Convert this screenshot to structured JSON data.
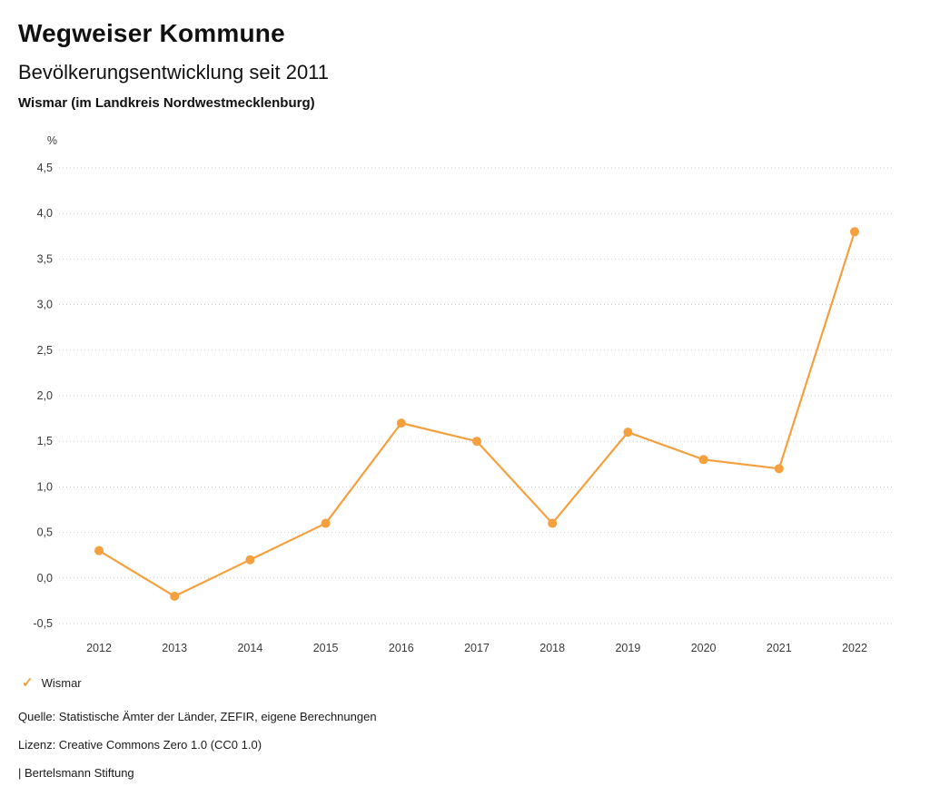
{
  "header": {
    "brand": "Wegweiser Kommune",
    "title": "Bevölkerungsentwicklung seit 2011",
    "subtitle": "Wismar (im Landkreis Nordwestmecklenburg)"
  },
  "chart_data": {
    "type": "line",
    "title": "Bevölkerungsentwicklung seit 2011",
    "unit": "%",
    "categories": [
      "2012",
      "2013",
      "2014",
      "2015",
      "2016",
      "2017",
      "2018",
      "2019",
      "2020",
      "2021",
      "2022"
    ],
    "series": [
      {
        "name": "Wismar",
        "color": "#F5A03E",
        "values": [
          0.3,
          -0.2,
          0.2,
          0.6,
          1.7,
          1.5,
          0.6,
          1.6,
          1.3,
          1.2,
          3.8
        ]
      }
    ],
    "ylim": [
      -0.5,
      4.5
    ],
    "ytick_step": 0.5,
    "ytick_labels": [
      "-0,5",
      "0,0",
      "0,5",
      "1,0",
      "1,5",
      "2,0",
      "2,5",
      "3,0",
      "3,5",
      "4,0",
      "4,5"
    ],
    "grid": "horizontal-dotted",
    "legend_position": "bottom-left",
    "colors": {
      "grid": "#c9c9c9",
      "tick_text": "#3a3a3a"
    }
  },
  "legend": {
    "items": [
      {
        "label": "Wismar",
        "color": "#F5A03E",
        "marker": "check-icon"
      }
    ]
  },
  "footer": {
    "source": "Quelle: Statistische Ämter der Länder, ZEFIR, eigene Berechnungen",
    "license": "Lizenz: Creative Commons Zero 1.0 (CC0 1.0)",
    "attribution": "| Bertelsmann Stiftung"
  }
}
